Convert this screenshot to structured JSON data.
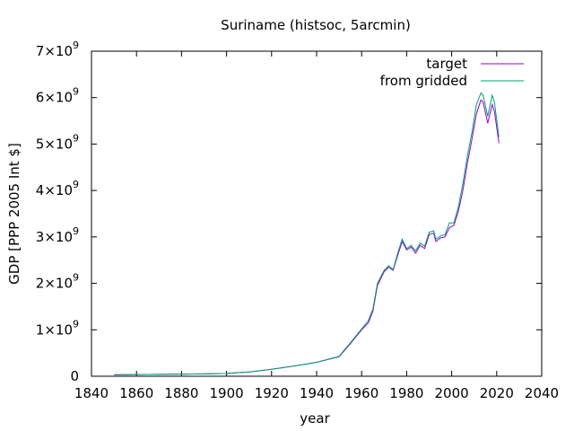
{
  "chart_data": {
    "type": "line",
    "title": "Suriname (histsoc, 5arcmin)",
    "xlabel": "year",
    "ylabel": "GDP [PPP 2005 Int $]",
    "xlim": [
      1840,
      2040
    ],
    "ylim": [
      0,
      7000000000
    ],
    "x_ticks": [
      1840,
      1860,
      1880,
      1900,
      1920,
      1940,
      1960,
      1980,
      2000,
      2020,
      2040
    ],
    "x_tick_labels": [
      "1840",
      "1860",
      "1880",
      "1900",
      "1920",
      "1940",
      "1960",
      "1980",
      "2000",
      "2020",
      "2040"
    ],
    "y_ticks": [
      {
        "value": 0,
        "base": "0",
        "exp": ""
      },
      {
        "value": 1000000000,
        "base": "1×10",
        "exp": "9"
      },
      {
        "value": 2000000000,
        "base": "2×10",
        "exp": "9"
      },
      {
        "value": 3000000000,
        "base": "3×10",
        "exp": "9"
      },
      {
        "value": 4000000000,
        "base": "4×10",
        "exp": "9"
      },
      {
        "value": 5000000000,
        "base": "5×10",
        "exp": "9"
      },
      {
        "value": 6000000000,
        "base": "6×10",
        "exp": "9"
      },
      {
        "value": 7000000000,
        "base": "7×10",
        "exp": "9"
      }
    ],
    "grid": false,
    "legend_position": "top-right",
    "series": [
      {
        "name": "target",
        "color": "#9400d3",
        "x": [
          1850,
          1870,
          1890,
          1900,
          1910,
          1920,
          1930,
          1940,
          1950,
          1955,
          1960,
          1963,
          1965,
          1967,
          1970,
          1972,
          1974,
          1976,
          1978,
          1980,
          1982,
          1984,
          1986,
          1988,
          1990,
          1992,
          1993,
          1995,
          1997,
          1999,
          2001,
          2003,
          2005,
          2007,
          2009,
          2011,
          2013,
          2014,
          2016,
          2018,
          2019,
          2021
        ],
        "y": [
          30000000,
          40000000,
          50000000,
          60000000,
          90000000,
          150000000,
          220000000,
          300000000,
          420000000,
          700000000,
          1000000000,
          1150000000,
          1400000000,
          1950000000,
          2250000000,
          2350000000,
          2280000000,
          2600000000,
          2900000000,
          2720000000,
          2780000000,
          2650000000,
          2820000000,
          2750000000,
          3050000000,
          3080000000,
          2900000000,
          2980000000,
          3000000000,
          3200000000,
          3250000000,
          3550000000,
          4000000000,
          4600000000,
          5100000000,
          5650000000,
          5950000000,
          5900000000,
          5450000000,
          5850000000,
          5700000000,
          5020000000
        ]
      },
      {
        "name": "from gridded",
        "color": "#009e73",
        "x": [
          1850,
          1870,
          1890,
          1900,
          1910,
          1920,
          1930,
          1940,
          1950,
          1955,
          1960,
          1963,
          1965,
          1967,
          1970,
          1972,
          1974,
          1976,
          1978,
          1980,
          1982,
          1984,
          1986,
          1988,
          1990,
          1992,
          1993,
          1995,
          1997,
          1999,
          2001,
          2003,
          2005,
          2007,
          2009,
          2011,
          2013,
          2014,
          2016,
          2018,
          2019,
          2021
        ],
        "y": [
          30000000,
          40000000,
          50000000,
          60000000,
          90000000,
          150000000,
          220000000,
          300000000,
          430000000,
          720000000,
          1020000000,
          1200000000,
          1450000000,
          2000000000,
          2280000000,
          2380000000,
          2300000000,
          2650000000,
          2950000000,
          2750000000,
          2820000000,
          2700000000,
          2870000000,
          2800000000,
          3100000000,
          3130000000,
          2950000000,
          3020000000,
          3050000000,
          3300000000,
          3300000000,
          3650000000,
          4150000000,
          4750000000,
          5250000000,
          5850000000,
          6100000000,
          6050000000,
          5600000000,
          6050000000,
          5900000000,
          5150000000
        ]
      }
    ]
  }
}
